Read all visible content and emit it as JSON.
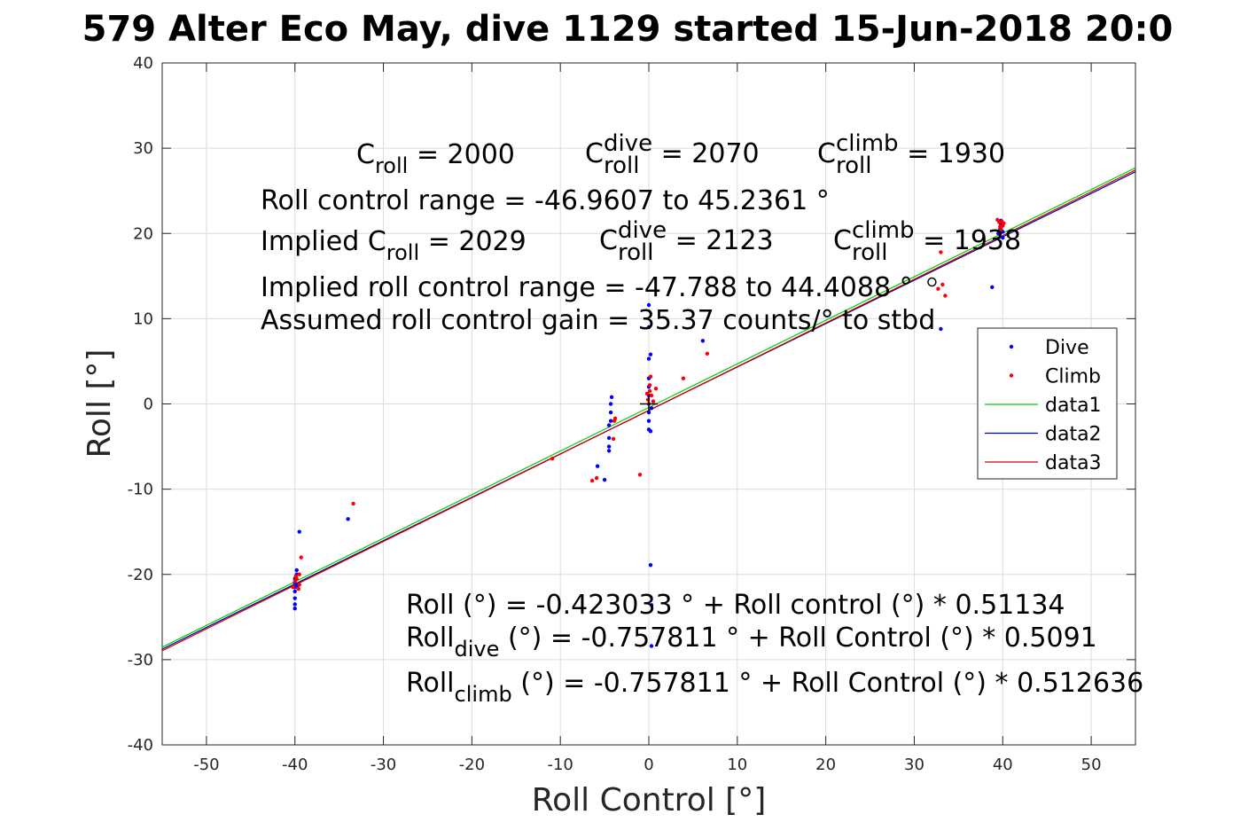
{
  "chart_data": {
    "type": "scatter",
    "title": "579 Alter Eco May, dive 1129 started 15-Jun-2018 20:0",
    "xlabel": "Roll Control [°]",
    "ylabel": "Roll [°]",
    "xlim": [
      -55,
      55
    ],
    "ylim": [
      -40,
      40
    ],
    "xticks": [
      -50,
      -40,
      -30,
      -20,
      -10,
      0,
      10,
      20,
      30,
      40,
      50
    ],
    "yticks": [
      -40,
      -30,
      -20,
      -10,
      0,
      10,
      20,
      30,
      40
    ],
    "xtick_labels": [
      "-50",
      "-40",
      "-30",
      "-20",
      "-10",
      "0",
      "10",
      "20",
      "30",
      "40",
      "50"
    ],
    "ytick_labels": [
      "-40",
      "-30",
      "-20",
      "-10",
      "0",
      "10",
      "20",
      "30",
      "40"
    ],
    "grid": true,
    "legend_position": "right",
    "legend": [
      "Dive",
      "Climb",
      "data1",
      "data2",
      "data3"
    ],
    "colors": {
      "dive": "#0000ff",
      "climb": "#ff0000",
      "data1": "#00cc00",
      "data2": "#0000aa",
      "data3": "#cc0000",
      "marker": "#000000"
    },
    "series": [
      {
        "name": "Dive",
        "kind": "points",
        "x": [
          -40,
          -40,
          -40,
          -40,
          -40,
          -40,
          -40,
          -39.8,
          -39.8,
          -39.7,
          -39.5,
          -34,
          -5.8,
          -5,
          -4.5,
          -4.5,
          -4.5,
          -4.5,
          -4.3,
          -4.3,
          -4.3,
          -4.2,
          0,
          0,
          0,
          0,
          0,
          0,
          0,
          0,
          0,
          0,
          0.2,
          0.2,
          0.3,
          0.3,
          0.3,
          0.2,
          6.1,
          33,
          38.8,
          39.5,
          39.7,
          39.8,
          39.8,
          40,
          40
        ],
        "y": [
          -24,
          -23.5,
          -22.8,
          -22,
          -21.5,
          -21,
          -20.5,
          -20,
          -19.5,
          -21.3,
          -15,
          -13.5,
          -7.3,
          -8.9,
          -5.5,
          -5,
          -4,
          -2.5,
          -2,
          -1,
          0,
          0.8,
          -3,
          -2,
          -1,
          0,
          1,
          2,
          3,
          5.3,
          9,
          11.6,
          5.8,
          -18.9,
          -23.6,
          -28.4,
          -0.5,
          -3.2,
          7.4,
          8.8,
          13.7,
          20,
          20.5,
          21,
          21.5,
          19.5,
          20.2
        ]
      },
      {
        "name": "Climb",
        "kind": "points",
        "x": [
          -40.2,
          -40,
          -39.9,
          -39.8,
          -39.6,
          -39.5,
          -39.5,
          -39.3,
          -33.4,
          -10.9,
          -6.4,
          -5.9,
          -4,
          -3.9,
          -3.8,
          -1,
          -0.2,
          -0.1,
          0,
          0.1,
          0.1,
          0.2,
          0.3,
          0.5,
          0.8,
          3.9,
          6.6,
          32.7,
          33,
          33.2,
          33.5,
          39.4,
          39.6,
          39.7,
          39.8,
          39.9,
          40,
          40.1
        ],
        "y": [
          -21.5,
          -20.8,
          -20.2,
          -20.5,
          -21.7,
          -21.2,
          -20,
          -18,
          -11.7,
          -6.4,
          -9,
          -8.7,
          -4.1,
          -2,
          -1.7,
          -8.3,
          1.2,
          0.5,
          0,
          1.5,
          2.2,
          3.2,
          1,
          0.3,
          1.8,
          3,
          5.9,
          13.5,
          17.8,
          14,
          12.7,
          21.6,
          21.3,
          20.8,
          20.5,
          21.4,
          20.9,
          21.2
        ]
      },
      {
        "name": "data1",
        "kind": "line",
        "x": [
          -55,
          55
        ],
        "y": [
          -28.54,
          27.7
        ]
      },
      {
        "name": "data2",
        "kind": "line",
        "x": [
          -55,
          55
        ],
        "y": [
          -28.76,
          27.24
        ]
      },
      {
        "name": "data3",
        "kind": "line",
        "x": [
          -55,
          55
        ],
        "y": [
          -28.95,
          27.44
        ]
      },
      {
        "name": "",
        "kind": "cross",
        "x": [
          0
        ],
        "y": [
          0
        ]
      },
      {
        "name": "",
        "kind": "circle",
        "x": [
          32
        ],
        "y": [
          14.3
        ]
      }
    ],
    "annotations": {
      "c_roll_label": "C",
      "c_roll_sub": "roll",
      "c_roll_value": "= 2000",
      "c_dive_sup": "dive",
      "c_dive_sub": "roll",
      "c_dive_value": "= 2070",
      "c_climb_sup": "climb",
      "c_climb_sub": "roll",
      "c_climb_value": "= 1930",
      "roll_range": "Roll control range = -46.9607 to 45.2361 °",
      "implied_label": "Implied C",
      "implied_sub": "roll",
      "implied_value": "= 2029",
      "implied_dive_value": "= 2123",
      "implied_climb_value": "= 1938",
      "implied_range": "Implied roll control range = -47.788 to 44.4088 °",
      "gain": "Assumed roll control gain = 35.37 counts/° to stbd",
      "fit_all": "Roll (°) = -0.423033 ° + Roll control (°) * 0.51134",
      "fit_dive_label": "Roll",
      "fit_dive_sub": "dive",
      "fit_dive_eq": "(°) = -0.757811 ° + Roll Control (°) * 0.5091",
      "fit_climb_label": "Roll",
      "fit_climb_sub": "climb",
      "fit_climb_eq": "(°) = -0.757811 ° + Roll Control (°) * 0.512636"
    }
  }
}
